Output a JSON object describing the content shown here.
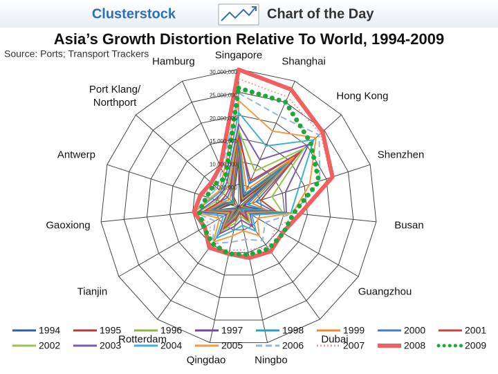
{
  "header": {
    "brand": "Clusterstock",
    "tagline": "Chart of the Day"
  },
  "chart_data": {
    "type": "radar",
    "title": "Asia’s Growth Distortion Relative To World, 1994-2009",
    "source": "Source: Ports; Transport Trackers",
    "categories": [
      "Singapore",
      "Shanghai",
      "Hong Kong",
      "Shenzhen",
      "Busan",
      "Guangzhou",
      "Dubai",
      "Ningbo",
      "Qingdao",
      "Rotterdam",
      "Tianjin",
      "Gaoxiong",
      "Antwerp",
      "Port Klang/ Northport",
      "Hamburg"
    ],
    "ylim": [
      0,
      30000000
    ],
    "yticks": [
      {
        "value": 5000000,
        "label": "5,000,000"
      },
      {
        "value": 10000000,
        "label": "10,000,000"
      },
      {
        "value": 15000000,
        "label": "15,000,000"
      },
      {
        "value": 20000000,
        "label": "20,000,000"
      },
      {
        "value": 25000000,
        "label": "25,000,000"
      },
      {
        "value": 30000000,
        "label": "30,000,000"
      }
    ],
    "grid": true,
    "legend": "bottom",
    "series": [
      {
        "name": "1994",
        "color": "#2c5f9e",
        "line_style": "solid",
        "values": [
          10400000,
          1200000,
          11000000,
          200000,
          3800000,
          500000,
          1900000,
          100000,
          600000,
          4500000,
          600000,
          4900000,
          1900000,
          1100000,
          2700000
        ]
      },
      {
        "name": "1995",
        "color": "#b23a3a",
        "line_style": "solid",
        "values": [
          11800000,
          1500000,
          12500000,
          300000,
          4500000,
          500000,
          2100000,
          200000,
          600000,
          4800000,
          700000,
          5200000,
          2300000,
          1100000,
          2900000
        ]
      },
      {
        "name": "1996",
        "color": "#8db43e",
        "line_style": "solid",
        "values": [
          12900000,
          2000000,
          13300000,
          600000,
          4700000,
          600000,
          2200000,
          200000,
          800000,
          4900000,
          800000,
          5100000,
          2700000,
          1400000,
          3100000
        ]
      },
      {
        "name": "1997",
        "color": "#6f4a9a",
        "line_style": "solid",
        "values": [
          14100000,
          2500000,
          14600000,
          1100000,
          5200000,
          700000,
          2600000,
          300000,
          1000000,
          5400000,
          900000,
          5700000,
          2900000,
          1700000,
          3300000
        ]
      },
      {
        "name": "1998",
        "color": "#2aa0b8",
        "line_style": "solid",
        "values": [
          15100000,
          3100000,
          14600000,
          2000000,
          5900000,
          800000,
          2800000,
          400000,
          1200000,
          6000000,
          1000000,
          6300000,
          3300000,
          1800000,
          3500000
        ]
      },
      {
        "name": "1999",
        "color": "#f08a2c",
        "line_style": "solid",
        "values": [
          15900000,
          4200000,
          16200000,
          3000000,
          6400000,
          1200000,
          2800000,
          600000,
          1500000,
          6300000,
          1300000,
          7000000,
          3600000,
          2600000,
          3700000
        ]
      },
      {
        "name": "2000",
        "color": "#3f7fc8",
        "line_style": "solid",
        "values": [
          17000000,
          5600000,
          18100000,
          4000000,
          7500000,
          1400000,
          3100000,
          900000,
          2100000,
          6300000,
          1700000,
          7400000,
          4100000,
          3200000,
          4200000
        ]
      },
      {
        "name": "2001",
        "color": "#c8433f",
        "line_style": "solid",
        "values": [
          15500000,
          6300000,
          17800000,
          5100000,
          8100000,
          1700000,
          3500000,
          1200000,
          2600000,
          6100000,
          2000000,
          7500000,
          4200000,
          3800000,
          4700000
        ]
      },
      {
        "name": "2002",
        "color": "#9bc053",
        "line_style": "solid",
        "values": [
          16800000,
          8600000,
          19100000,
          7600000,
          9500000,
          2200000,
          4200000,
          1900000,
          3400000,
          6500000,
          2400000,
          8500000,
          4800000,
          4500000,
          5400000
        ]
      },
      {
        "name": "2003",
        "color": "#7b5aa6",
        "line_style": "solid",
        "values": [
          18100000,
          11300000,
          20400000,
          10700000,
          10400000,
          2800000,
          5200000,
          2800000,
          4200000,
          7100000,
          3000000,
          8800000,
          5400000,
          4800000,
          6100000
        ]
      },
      {
        "name": "2004",
        "color": "#3fb0d0",
        "line_style": "solid",
        "values": [
          20600000,
          14600000,
          21900000,
          13700000,
          11400000,
          3300000,
          6400000,
          4000000,
          5100000,
          8300000,
          3800000,
          9700000,
          6100000,
          5200000,
          7000000
        ]
      },
      {
        "name": "2005",
        "color": "#f59a40",
        "line_style": "solid",
        "values": [
          23200000,
          18100000,
          22600000,
          16200000,
          11800000,
          4700000,
          7600000,
          5200000,
          6300000,
          9300000,
          4800000,
          9500000,
          6500000,
          5500000,
          8100000
        ]
      },
      {
        "name": "2006",
        "color": "#9ab4d8",
        "line_style": "dashed",
        "values": [
          24800000,
          21700000,
          23500000,
          18500000,
          12000000,
          6600000,
          8900000,
          7100000,
          7700000,
          9700000,
          5900000,
          9800000,
          7000000,
          6300000,
          8900000
        ]
      },
      {
        "name": "2007",
        "color": "#e8a0a0",
        "line_style": "dotted",
        "values": [
          27900000,
          26200000,
          23900000,
          21100000,
          13300000,
          9200000,
          10700000,
          9400000,
          9500000,
          10800000,
          7100000,
          10300000,
          8200000,
          7100000,
          9900000
        ]
      },
      {
        "name": "2008",
        "color": "#f25f5f",
        "line_style": "solid",
        "values": [
          29900000,
          28000000,
          24500000,
          21400000,
          13400000,
          11000000,
          11800000,
          11200000,
          10300000,
          10800000,
          8500000,
          9700000,
          8700000,
          8000000,
          9700000
        ]
      },
      {
        "name": "2009",
        "color": "#1fa83a",
        "line_style": "round-dotted",
        "values": [
          25900000,
          25000000,
          21000000,
          18300000,
          12000000,
          11200000,
          11100000,
          10500000,
          10300000,
          9700000,
          8700000,
          8600000,
          7300000,
          7300000,
          7000000
        ]
      }
    ]
  }
}
